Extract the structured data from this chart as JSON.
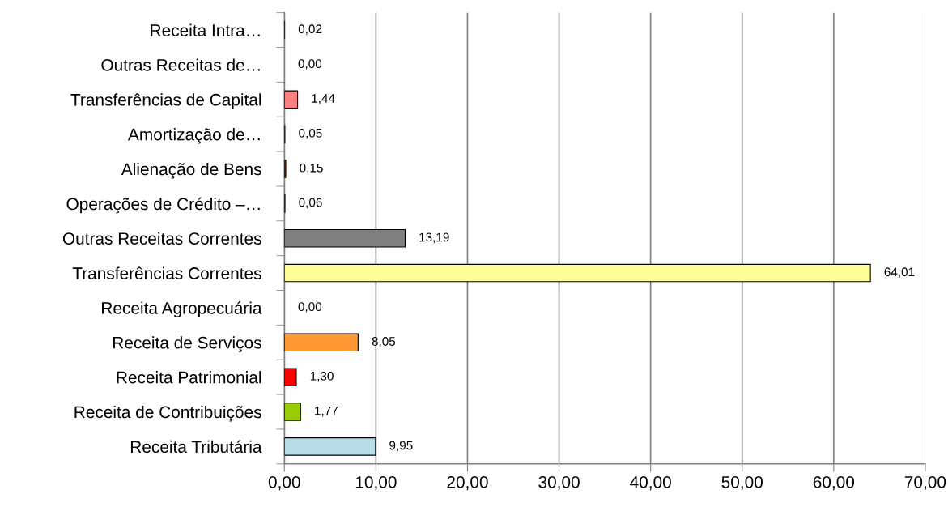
{
  "chart_data": {
    "type": "bar",
    "orientation": "horizontal",
    "categories": [
      "Receita Intra…",
      "Outras Receitas de…",
      "Transferências de Capital",
      "Amortização de…",
      "Alienação de Bens",
      "Operações de Crédito –…",
      "Outras Receitas Correntes",
      "Transferências Correntes",
      "Receita Agropecuária",
      "Receita de Serviços",
      "Receita Patrimonial",
      "Receita de Contribuições",
      "Receita Tributária"
    ],
    "values": [
      0.02,
      0.0,
      1.44,
      0.05,
      0.15,
      0.06,
      13.19,
      64.01,
      0.0,
      8.05,
      1.3,
      1.77,
      9.95
    ],
    "value_labels": [
      "0,02",
      "0,00",
      "1,44",
      "0,05",
      "0,15",
      "0,06",
      "13,19",
      "64,01",
      "0,00",
      "8,05",
      "1,30",
      "1,77",
      "9,95"
    ],
    "colors": [
      "#3366cc",
      "#cccccc",
      "#ff8080",
      "#666699",
      "#993300",
      "#808080",
      "#808080",
      "#ffff99",
      "#ffffff",
      "#ff9933",
      "#ff0000",
      "#99cc00",
      "#b7dde8"
    ],
    "xlim": [
      0,
      70
    ],
    "xticks": [
      {
        "value": 0,
        "label": "0,00"
      },
      {
        "value": 10,
        "label": "10,00"
      },
      {
        "value": 20,
        "label": "20,00"
      },
      {
        "value": 30,
        "label": "30,00"
      },
      {
        "value": 40,
        "label": "40,00"
      },
      {
        "value": 50,
        "label": "50,00"
      },
      {
        "value": 60,
        "label": "60,00"
      },
      {
        "value": 70,
        "label": "70,00"
      }
    ],
    "grid": "x",
    "legend": false
  }
}
